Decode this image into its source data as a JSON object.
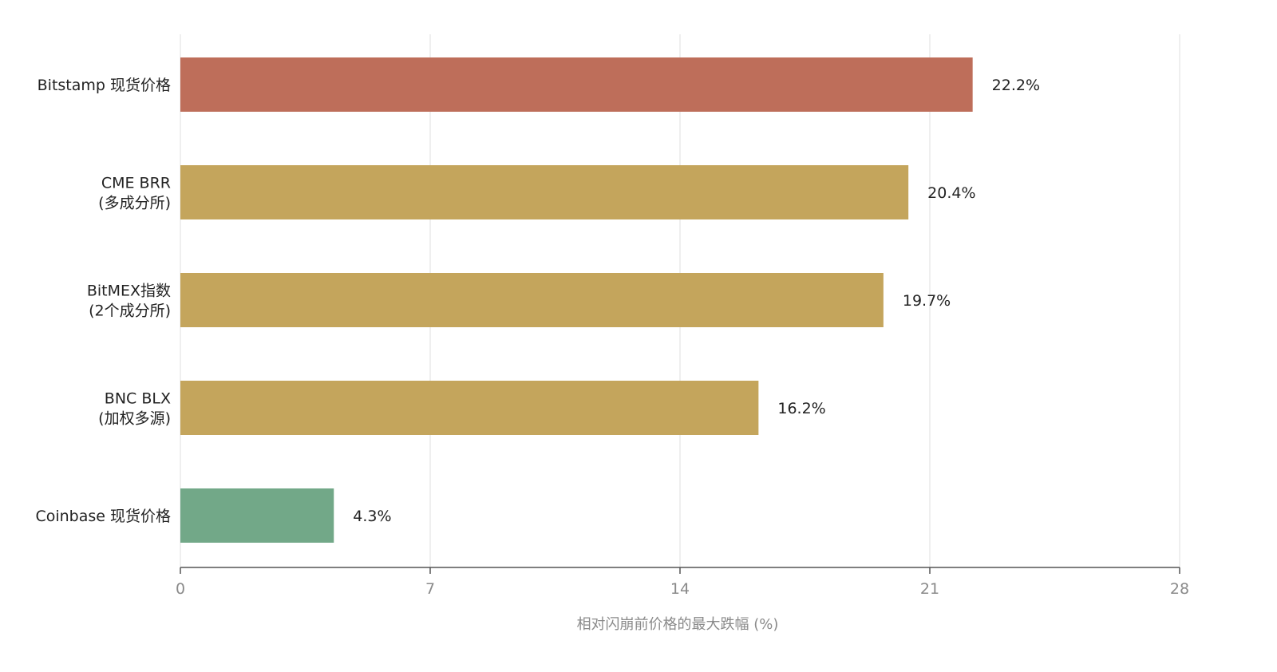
{
  "chart_data": {
    "type": "bar",
    "orientation": "horizontal",
    "categories": [
      [
        "Bitstamp 现货价格"
      ],
      [
        "CME BRR",
        "(多成分所)"
      ],
      [
        "BitMEX指数",
        "(2个成分所)"
      ],
      [
        "BNC BLX",
        "(加权多源)"
      ],
      [
        "Coinbase 现货价格"
      ]
    ],
    "values": [
      22.2,
      20.4,
      19.7,
      16.2,
      4.3
    ],
    "value_labels": [
      "22.2%",
      "20.4%",
      "19.7%",
      "16.2%",
      "4.3%"
    ],
    "colors": [
      "#BE6E5A",
      "#C4A55C",
      "#C4A55C",
      "#C4A55C",
      "#72A888"
    ],
    "xlabel": "相对闪崩前价格的最大跌幅 (%)",
    "xlim": [
      0,
      28
    ],
    "xticks": [
      0,
      7,
      14,
      21,
      28
    ],
    "grid": true,
    "legend": "none"
  }
}
